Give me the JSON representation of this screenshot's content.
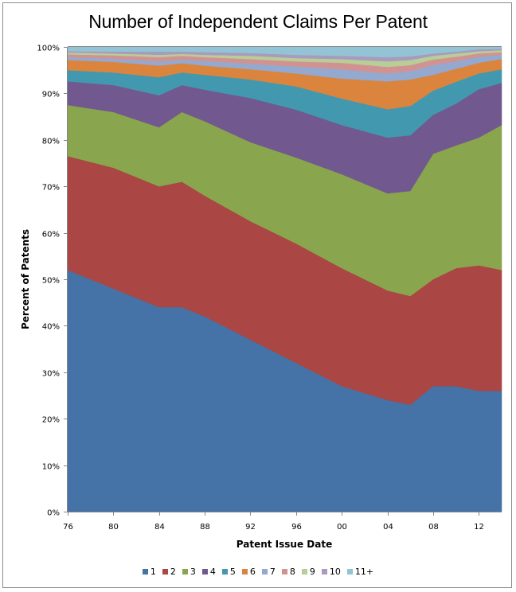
{
  "chart_data": {
    "type": "area",
    "stacked": "percent",
    "title": "Number of Independent Claims Per Patent",
    "xlabel": "Patent Issue Date",
    "ylabel": "Percent of Patents",
    "ylim": [
      0,
      100
    ],
    "xlim": [
      1976,
      2014
    ],
    "grid": false,
    "legend_position": "bottom",
    "y_ticks": [
      {
        "value": 0,
        "label": "0%"
      },
      {
        "value": 10,
        "label": "10%"
      },
      {
        "value": 20,
        "label": "20%"
      },
      {
        "value": 30,
        "label": "30%"
      },
      {
        "value": 40,
        "label": "40%"
      },
      {
        "value": 50,
        "label": "50%"
      },
      {
        "value": 60,
        "label": "60%"
      },
      {
        "value": 70,
        "label": "70%"
      },
      {
        "value": 80,
        "label": "80%"
      },
      {
        "value": 90,
        "label": "90%"
      },
      {
        "value": 100,
        "label": "100%"
      }
    ],
    "x_ticks": [
      {
        "value": 1976,
        "label": "76"
      },
      {
        "value": 1980,
        "label": "80"
      },
      {
        "value": 1984,
        "label": "84"
      },
      {
        "value": 1988,
        "label": "88"
      },
      {
        "value": 1992,
        "label": "92"
      },
      {
        "value": 1996,
        "label": "96"
      },
      {
        "value": 2000,
        "label": "00"
      },
      {
        "value": 2004,
        "label": "04"
      },
      {
        "value": 2008,
        "label": "08"
      },
      {
        "value": 2012,
        "label": "12"
      }
    ],
    "x": [
      1976,
      1980,
      1984,
      1986,
      1988,
      1992,
      1996,
      2000,
      2004,
      2006,
      2008,
      2010,
      2012,
      2014
    ],
    "series": [
      {
        "name": "1",
        "color": "#4572A7",
        "values": [
          52,
          48,
          44,
          44,
          42,
          37,
          32,
          27,
          24,
          23,
          27,
          27,
          26,
          26
        ]
      },
      {
        "name": "2",
        "color": "#AA4643",
        "values": [
          24.5,
          26,
          26,
          27,
          26,
          25.5,
          25.7,
          25.4,
          23.6,
          23.4,
          23,
          25.4,
          27,
          26
        ]
      },
      {
        "name": "3",
        "color": "#89A54E",
        "values": [
          11.0,
          12,
          12.7,
          15,
          16,
          17,
          18.5,
          20.2,
          20.9,
          22.6,
          27,
          26.4,
          27.5,
          31.2
        ]
      },
      {
        "name": "4",
        "color": "#71588F",
        "values": [
          5.1,
          5.8,
          6.9,
          5.8,
          6.8,
          9.5,
          10.3,
          10.6,
          12.0,
          12.0,
          8.4,
          9.0,
          10.4,
          9.1
        ]
      },
      {
        "name": "5",
        "color": "#4198AF",
        "values": [
          2.4,
          2.7,
          3.9,
          2.7,
          3.2,
          4.0,
          5.0,
          5.7,
          6.1,
          6.3,
          5.2,
          4.7,
          3.4,
          2.9
        ]
      },
      {
        "name": "6",
        "color": "#DB843D",
        "values": [
          2.2,
          2.3,
          2.5,
          2.0,
          2.0,
          2.2,
          2.8,
          4.3,
          6.0,
          5.7,
          3.4,
          2.8,
          2.3,
          2.2
        ]
      },
      {
        "name": "7",
        "color": "#93A9CF",
        "values": [
          0.6,
          0.7,
          0.9,
          0.8,
          1.0,
          1.2,
          1.5,
          2.0,
          1.7,
          1.8,
          2.1,
          1.6,
          1.3,
          0.9
        ]
      },
      {
        "name": "8",
        "color": "#D19392",
        "values": [
          0.6,
          0.7,
          0.9,
          0.8,
          0.8,
          1.0,
          1.1,
          1.4,
          1.4,
          1.3,
          1.2,
          1.0,
          0.7,
          0.6
        ]
      },
      {
        "name": "9",
        "color": "#B9CD96",
        "values": [
          0.4,
          0.4,
          0.5,
          0.4,
          0.5,
          0.7,
          0.7,
          0.8,
          1.2,
          1.1,
          0.8,
          0.7,
          0.5,
          0.4
        ]
      },
      {
        "name": "10",
        "color": "#A99BBD",
        "values": [
          0.3,
          0.4,
          0.7,
          0.5,
          0.6,
          0.6,
          0.7,
          0.7,
          0.9,
          0.8,
          0.5,
          0.4,
          0.4,
          0.3
        ]
      },
      {
        "name": "11+",
        "color": "#92C4D5",
        "values": [
          0.9,
          1.0,
          1.0,
          1.0,
          1.1,
          1.3,
          1.7,
          1.9,
          2.2,
          2.0,
          1.4,
          1.0,
          0.5,
          0.4
        ]
      }
    ]
  }
}
